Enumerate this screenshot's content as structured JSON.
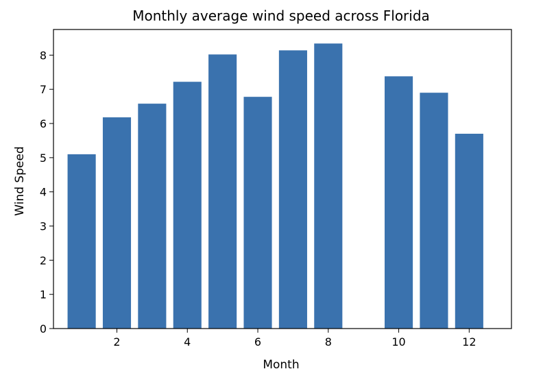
{
  "chart_data": {
    "type": "bar",
    "title": "Monthly average wind speed across Florida",
    "xlabel": "Month",
    "ylabel": "Wind Speed",
    "x": [
      1,
      2,
      3,
      4,
      5,
      6,
      7,
      8,
      10,
      11,
      12
    ],
    "values": [
      5.1,
      6.18,
      6.58,
      7.22,
      8.02,
      6.78,
      8.14,
      8.34,
      7.38,
      6.9,
      5.7
    ],
    "xlim": [
      0.2,
      13.2
    ],
    "ylim": [
      0,
      8.75
    ],
    "xticks": [
      2,
      4,
      6,
      8,
      10,
      12
    ],
    "yticks": [
      0,
      1,
      2,
      3,
      4,
      5,
      6,
      7,
      8
    ],
    "bar_color": "#3a72ae",
    "grid": false,
    "legend": "none"
  }
}
